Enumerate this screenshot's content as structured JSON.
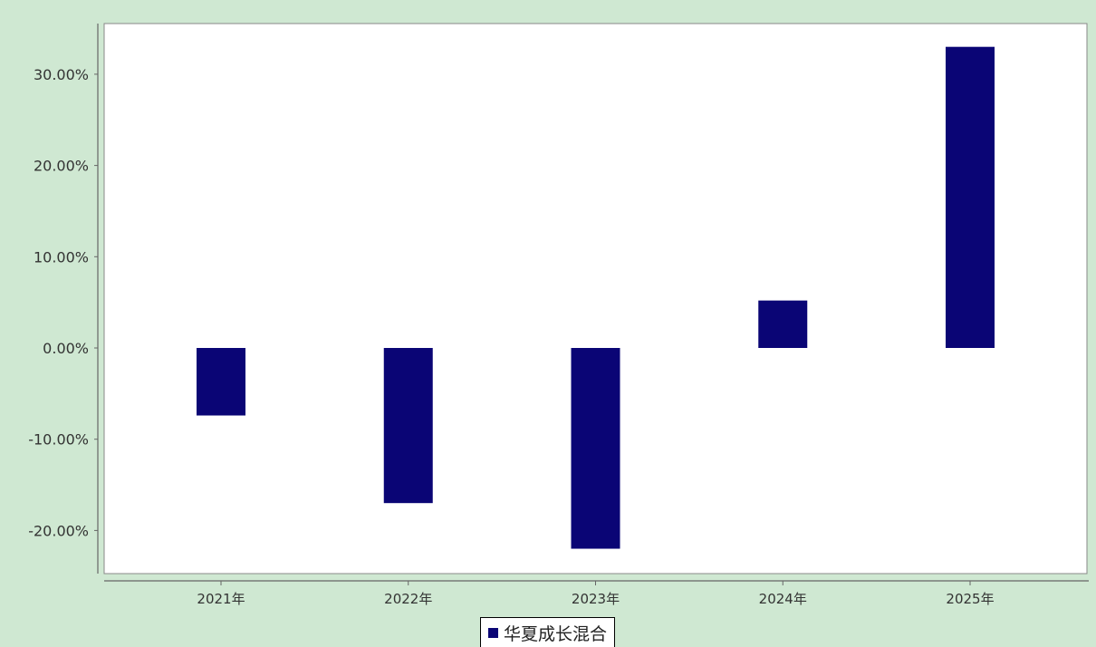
{
  "chart_data": {
    "type": "bar",
    "categories": [
      "2021年",
      "2022年",
      "2023年",
      "2024年",
      "2025年"
    ],
    "series": [
      {
        "name": "华夏成长混合",
        "values": [
          -7.4,
          -17.0,
          -22.0,
          5.2,
          33.0
        ]
      }
    ],
    "y_ticks": [
      "-20.00%",
      "-10.00%",
      "0.00%",
      "10.00%",
      "20.00%",
      "30.00%"
    ],
    "ylim": [
      -25,
      35
    ],
    "grid": false,
    "legend_position": "bottom-center",
    "colors": {
      "bar": "#0a0575",
      "background": "#cfe8d2",
      "plot": "#ffffff"
    }
  }
}
